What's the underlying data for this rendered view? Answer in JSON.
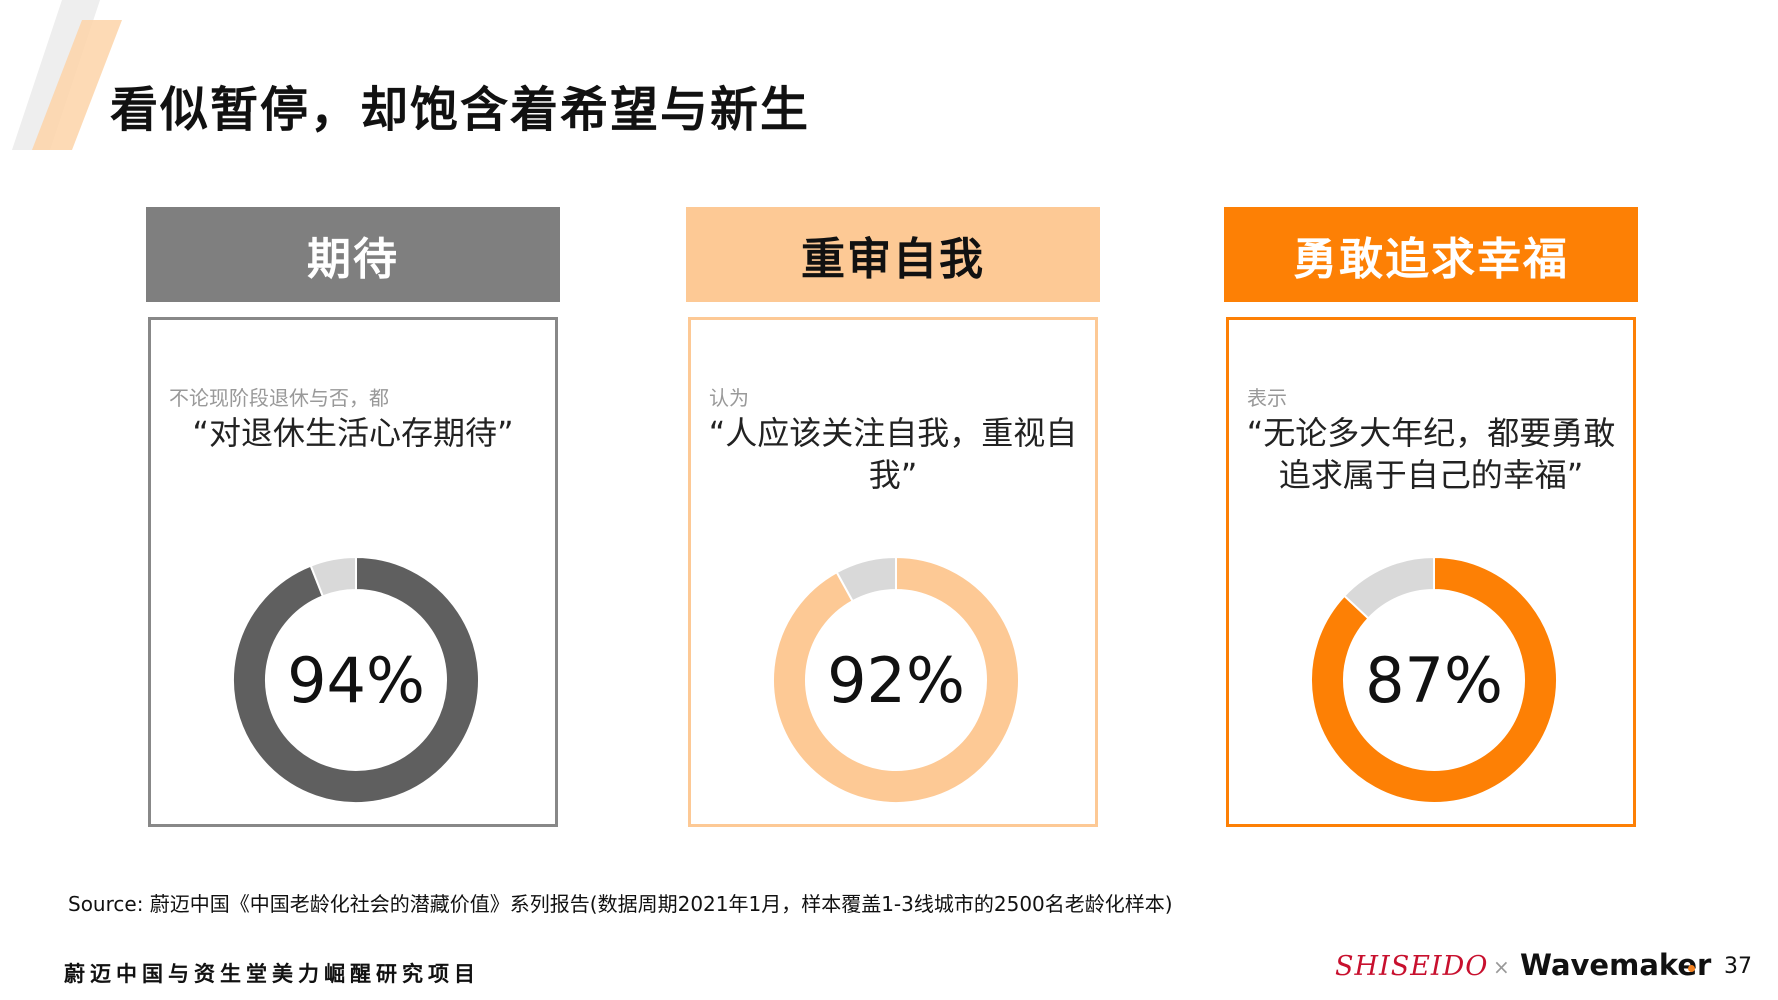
{
  "page": {
    "title": "看似暂停，却饱含着希望与新生",
    "source": "Source: 蔚迈中国《中国老龄化社会的潜藏价值》系列报告(数据周期2021年1月，样本覆盖1-3线城市的2500名老龄化样本)",
    "footer_left": "蔚迈中国与资生堂美力崛醒研究项目",
    "brand_shiseido": "SHISEIDO",
    "brand_times": "×",
    "brand_wavemaker": "Wavemaker",
    "page_number": "37"
  },
  "colors": {
    "gray_dark": "#5f5f5f",
    "gray_header": "#7f7f7f",
    "peach": "#fdc995",
    "orange": "#fd8005",
    "remainder": "#d9d9d9"
  },
  "cards": [
    {
      "header": "期待",
      "lead": "不论现阶段退休与否，都",
      "quote": "“对退休生活心存期待”",
      "percent_label": "94%"
    },
    {
      "header": "重审自我",
      "lead": "认为",
      "quote": "“人应该关注自我，重视自我”",
      "percent_label": "92%"
    },
    {
      "header": "勇敢追求幸福",
      "lead": "表示",
      "quote": "“无论多大年纪，都要勇敢追求属于自己的幸福”",
      "percent_label": "87%"
    }
  ],
  "chart_data": [
    {
      "type": "pie",
      "labels": [
        "期待",
        ""
      ],
      "values": [
        94,
        6
      ],
      "colors": [
        "#5f5f5f",
        "#d9d9d9"
      ]
    },
    {
      "type": "pie",
      "labels": [
        "重审自我",
        ""
      ],
      "values": [
        92,
        8
      ],
      "colors": [
        "#fdc995",
        "#d9d9d9"
      ]
    },
    {
      "type": "pie",
      "labels": [
        "勇敢追求幸福",
        ""
      ],
      "values": [
        87,
        13
      ],
      "colors": [
        "#fd8005",
        "#d9d9d9"
      ]
    }
  ]
}
